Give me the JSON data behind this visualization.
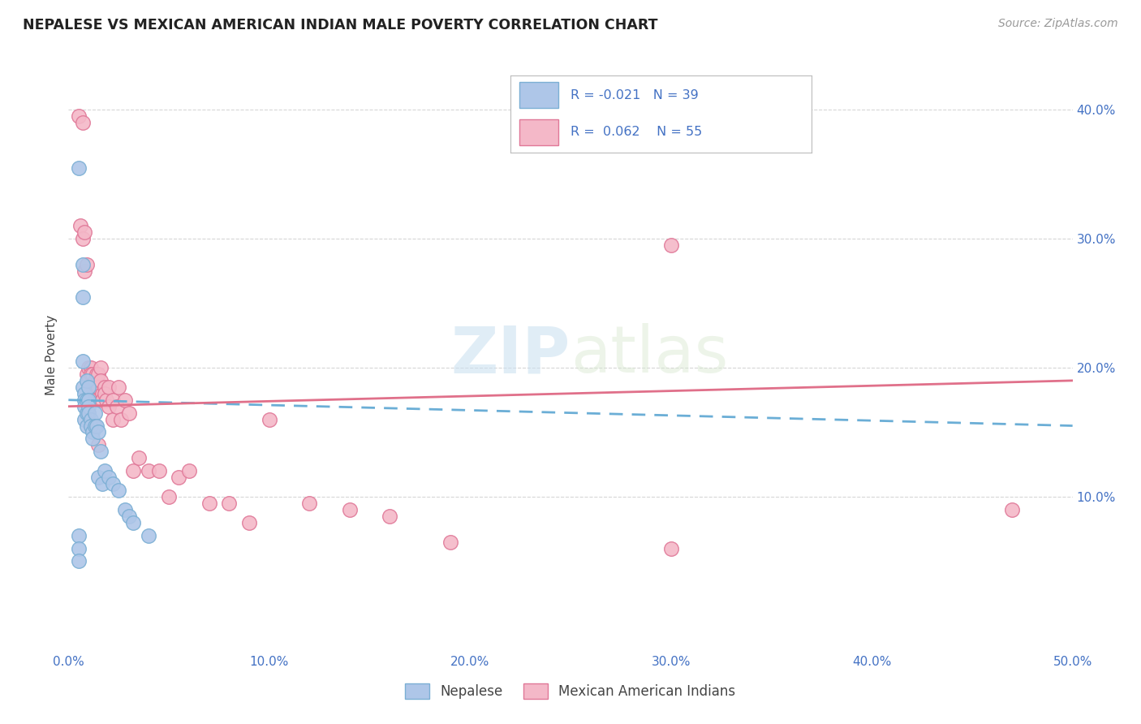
{
  "title": "NEPALESE VS MEXICAN AMERICAN INDIAN MALE POVERTY CORRELATION CHART",
  "source": "Source: ZipAtlas.com",
  "ylabel": "Male Poverty",
  "xlim": [
    0.0,
    0.5
  ],
  "ylim": [
    -0.02,
    0.44
  ],
  "legend_r1": "-0.021",
  "legend_n1": "39",
  "legend_r2": "0.062",
  "legend_n2": "55",
  "nepalese_color": "#aec6e8",
  "mexican_color": "#f4b8c8",
  "nepalese_edge": "#7bafd4",
  "mexican_edge": "#e07898",
  "line_nepalese_color": "#6baed6",
  "line_mexican_color": "#e0708a",
  "watermark_zip": "ZIP",
  "watermark_atlas": "atlas",
  "nepalese_x": [
    0.005,
    0.005,
    0.005,
    0.007,
    0.007,
    0.007,
    0.007,
    0.008,
    0.008,
    0.008,
    0.008,
    0.009,
    0.009,
    0.009,
    0.009,
    0.01,
    0.01,
    0.01,
    0.01,
    0.011,
    0.011,
    0.012,
    0.012,
    0.013,
    0.013,
    0.014,
    0.015,
    0.015,
    0.016,
    0.017,
    0.018,
    0.02,
    0.022,
    0.025,
    0.028,
    0.03,
    0.032,
    0.04,
    0.005
  ],
  "nepalese_y": [
    0.355,
    0.07,
    0.06,
    0.28,
    0.255,
    0.205,
    0.185,
    0.18,
    0.175,
    0.17,
    0.16,
    0.19,
    0.175,
    0.165,
    0.155,
    0.185,
    0.175,
    0.17,
    0.165,
    0.16,
    0.155,
    0.15,
    0.145,
    0.165,
    0.155,
    0.155,
    0.15,
    0.115,
    0.135,
    0.11,
    0.12,
    0.115,
    0.11,
    0.105,
    0.09,
    0.085,
    0.08,
    0.07,
    0.05
  ],
  "mexican_x": [
    0.005,
    0.006,
    0.007,
    0.007,
    0.008,
    0.008,
    0.009,
    0.009,
    0.01,
    0.01,
    0.011,
    0.011,
    0.012,
    0.012,
    0.013,
    0.013,
    0.014,
    0.014,
    0.015,
    0.015,
    0.015,
    0.016,
    0.016,
    0.017,
    0.017,
    0.018,
    0.018,
    0.019,
    0.02,
    0.02,
    0.022,
    0.022,
    0.024,
    0.025,
    0.026,
    0.028,
    0.03,
    0.032,
    0.035,
    0.04,
    0.045,
    0.05,
    0.055,
    0.06,
    0.07,
    0.08,
    0.09,
    0.1,
    0.12,
    0.14,
    0.16,
    0.19,
    0.3,
    0.47,
    0.3
  ],
  "mexican_y": [
    0.395,
    0.31,
    0.39,
    0.3,
    0.305,
    0.275,
    0.28,
    0.195,
    0.2,
    0.19,
    0.2,
    0.195,
    0.195,
    0.185,
    0.19,
    0.18,
    0.195,
    0.185,
    0.195,
    0.185,
    0.14,
    0.2,
    0.19,
    0.18,
    0.175,
    0.185,
    0.18,
    0.175,
    0.185,
    0.17,
    0.175,
    0.16,
    0.17,
    0.185,
    0.16,
    0.175,
    0.165,
    0.12,
    0.13,
    0.12,
    0.12,
    0.1,
    0.115,
    0.12,
    0.095,
    0.095,
    0.08,
    0.16,
    0.095,
    0.09,
    0.085,
    0.065,
    0.06,
    0.09,
    0.295
  ]
}
